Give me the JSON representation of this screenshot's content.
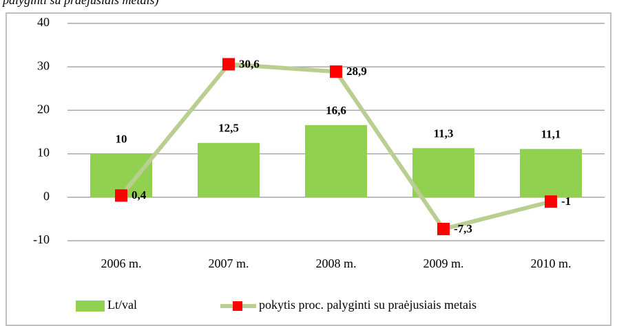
{
  "chart_data": {
    "type": "bar",
    "title": "palyginti su praėjusiais metais)",
    "categories": [
      "2006 m.",
      "2007 m.",
      "2008 m.",
      "2009 m.",
      "2010 m."
    ],
    "series": [
      {
        "name": "Lt/val",
        "type": "bar",
        "color": "#92d050",
        "values": [
          10,
          12.5,
          16.6,
          11.3,
          11.1
        ],
        "value_labels": [
          "10",
          "12,5",
          "16,6",
          "11,3",
          "11,1"
        ]
      },
      {
        "name": "pokytis proc. palyginti su praėjusiais metais",
        "type": "line",
        "color": "#b8cf91",
        "marker_color": "#ff0000",
        "values": [
          0.4,
          30.6,
          28.9,
          -7.3,
          -1
        ],
        "value_labels": [
          "0,4",
          "30,6",
          "28,9",
          "-7,3",
          "-1"
        ]
      }
    ],
    "ylim": [
      -10,
      40
    ],
    "yticks": [
      -10,
      0,
      10,
      20,
      30,
      40
    ],
    "grid": true,
    "legend": "bottom"
  }
}
